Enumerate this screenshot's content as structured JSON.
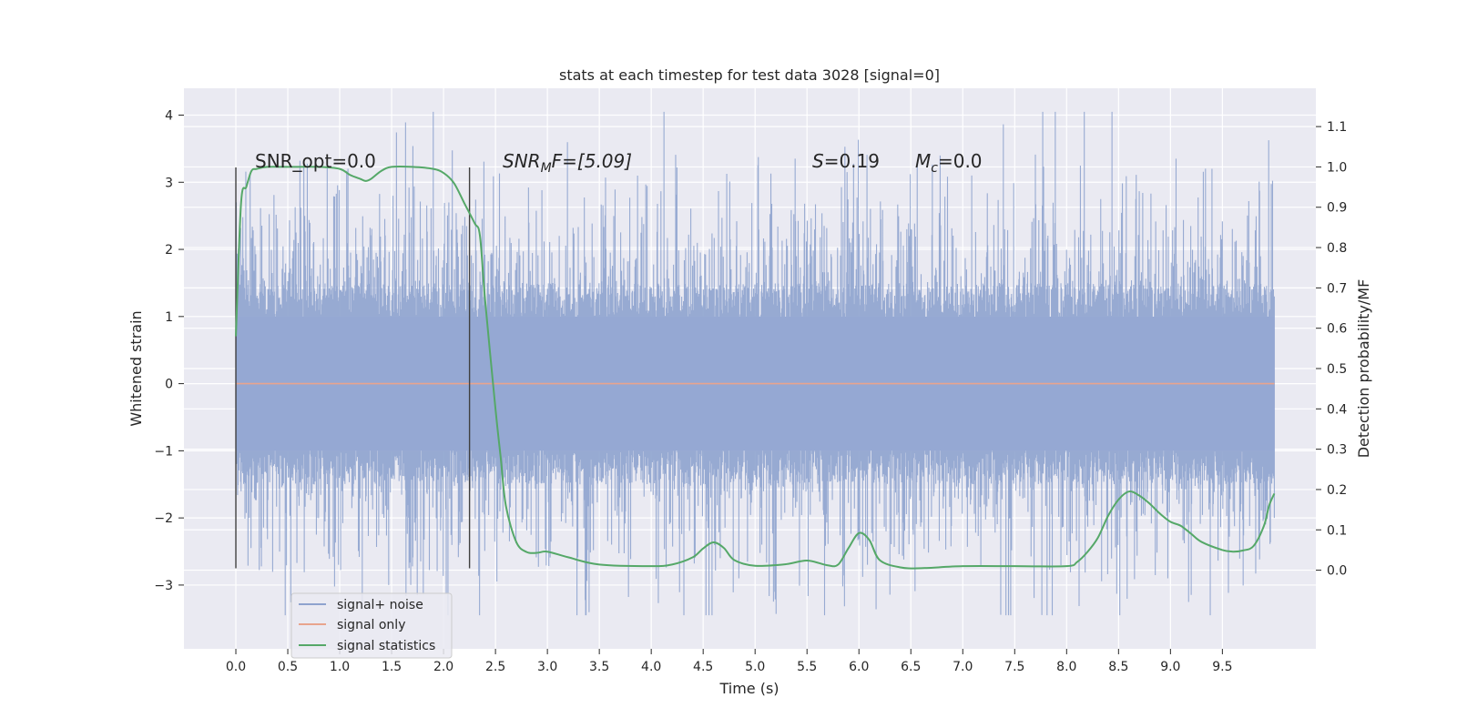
{
  "chart_data": {
    "type": "line",
    "title": "stats at each timestep for test data 3028 [signal=0]",
    "xlabel": "Time (s)",
    "ylabel": "Whitened strain",
    "ylabel_right": "Detection probability/MF",
    "xlim": [
      -0.5,
      10.4
    ],
    "ylim": [
      -3.95,
      4.4
    ],
    "ylim_right": [
      -0.195,
      1.195
    ],
    "x_ticks": [
      0.0,
      0.5,
      1.0,
      1.5,
      2.0,
      2.5,
      3.0,
      3.5,
      4.0,
      4.5,
      5.0,
      5.5,
      6.0,
      6.5,
      7.0,
      7.5,
      8.0,
      8.5,
      9.0,
      9.5
    ],
    "x_tick_labels": [
      "0.0",
      "0.5",
      "1.0",
      "1.5",
      "2.0",
      "2.5",
      "3.0",
      "3.5",
      "4.0",
      "4.5",
      "5.0",
      "5.5",
      "6.0",
      "6.5",
      "7.0",
      "7.5",
      "8.0",
      "8.5",
      "9.0",
      "9.5"
    ],
    "y_ticks": [
      -3,
      -2,
      -1,
      0,
      1,
      2,
      3,
      4
    ],
    "y_tick_labels": [
      "−3",
      "−2",
      "−1",
      "0",
      "1",
      "2",
      "3",
      "4"
    ],
    "y_ticks_right": [
      0.0,
      0.1,
      0.2,
      0.3,
      0.4,
      0.5,
      0.6,
      0.7,
      0.8,
      0.9,
      1.0,
      1.1
    ],
    "y_tick_labels_right": [
      "0.0",
      "0.1",
      "0.2",
      "0.3",
      "0.4",
      "0.5",
      "0.6",
      "0.7",
      "0.8",
      "0.9",
      "1.0",
      "1.1"
    ],
    "grid": true,
    "legend_position": "lower-left",
    "noise_x_range": [
      0.0,
      10.0
    ],
    "noise_amplitude_std": 1.0,
    "noise_max": 4.05,
    "noise_min": -3.45,
    "series": [
      {
        "name": "signal+ noise",
        "axis": "left",
        "color": "#8ea3ce",
        "description_values": "dense gaussian noise between about -3.4 and 4.05"
      },
      {
        "name": "signal only",
        "axis": "left",
        "color": "#e8a48d",
        "x": [
          0.0,
          10.0
        ],
        "y": [
          0.0,
          0.0
        ]
      },
      {
        "name": "signal statistics",
        "axis": "right",
        "color": "#55a868",
        "x": [
          0.0,
          0.05,
          0.1,
          0.15,
          0.2,
          0.3,
          0.5,
          0.8,
          1.0,
          1.1,
          1.2,
          1.25,
          1.3,
          1.4,
          1.5,
          1.7,
          1.9,
          2.0,
          2.1,
          2.2,
          2.3,
          2.35,
          2.4,
          2.5,
          2.55,
          2.6,
          2.7,
          2.8,
          2.9,
          3.0,
          3.2,
          3.5,
          4.0,
          4.2,
          4.4,
          4.5,
          4.6,
          4.7,
          4.8,
          5.0,
          5.3,
          5.5,
          5.7,
          5.8,
          5.9,
          6.0,
          6.1,
          6.2,
          6.4,
          6.6,
          7.0,
          7.5,
          8.0,
          8.1,
          8.2,
          8.3,
          8.4,
          8.5,
          8.6,
          8.7,
          8.8,
          8.9,
          9.0,
          9.1,
          9.2,
          9.3,
          9.5,
          9.6,
          9.7,
          9.8,
          9.9,
          9.95,
          10.0
        ],
        "y": [
          0.58,
          0.91,
          0.95,
          0.99,
          0.995,
          1.0,
          1.0,
          1.0,
          0.995,
          0.98,
          0.97,
          0.965,
          0.97,
          0.99,
          1.0,
          1.0,
          0.995,
          0.985,
          0.96,
          0.91,
          0.86,
          0.83,
          0.67,
          0.4,
          0.28,
          0.16,
          0.07,
          0.045,
          0.043,
          0.046,
          0.032,
          0.014,
          0.01,
          0.014,
          0.032,
          0.054,
          0.069,
          0.055,
          0.025,
          0.011,
          0.015,
          0.024,
          0.012,
          0.014,
          0.055,
          0.092,
          0.075,
          0.025,
          0.007,
          0.005,
          0.01,
          0.01,
          0.01,
          0.02,
          0.045,
          0.08,
          0.135,
          0.175,
          0.195,
          0.185,
          0.165,
          0.14,
          0.12,
          0.11,
          0.09,
          0.07,
          0.05,
          0.046,
          0.049,
          0.06,
          0.11,
          0.16,
          0.19
        ]
      }
    ],
    "vertical_lines": [
      {
        "x": 0.0,
        "ymin": -2.75,
        "ymax": 3.22,
        "color": "#404040"
      },
      {
        "x": 2.25,
        "ymin": -2.75,
        "ymax": 3.22,
        "color": "#404040"
      }
    ],
    "annotations": [
      {
        "text": "SNR_opt=0.0",
        "x": 0.2,
        "y": 3.23,
        "italic_prefix": ""
      },
      {
        "text": "SNR_MF=[5.09]",
        "x": 2.6,
        "y": 3.23
      },
      {
        "text": "S=0.19",
        "x": 5.6,
        "y": 3.23
      },
      {
        "text": "M_c=0.0",
        "x": 6.6,
        "y": 3.23
      }
    ],
    "annotation_labels": {
      "snr_opt": "SNR_opt=0.0",
      "snr_mf_base": "SNR",
      "snr_mf_sub": "M",
      "snr_mf_rest": "F=[5.09]",
      "s_var": "S",
      "s_rest": "=0.19",
      "mc_var": "M",
      "mc_sub": "c",
      "mc_rest": "=0.0"
    }
  }
}
